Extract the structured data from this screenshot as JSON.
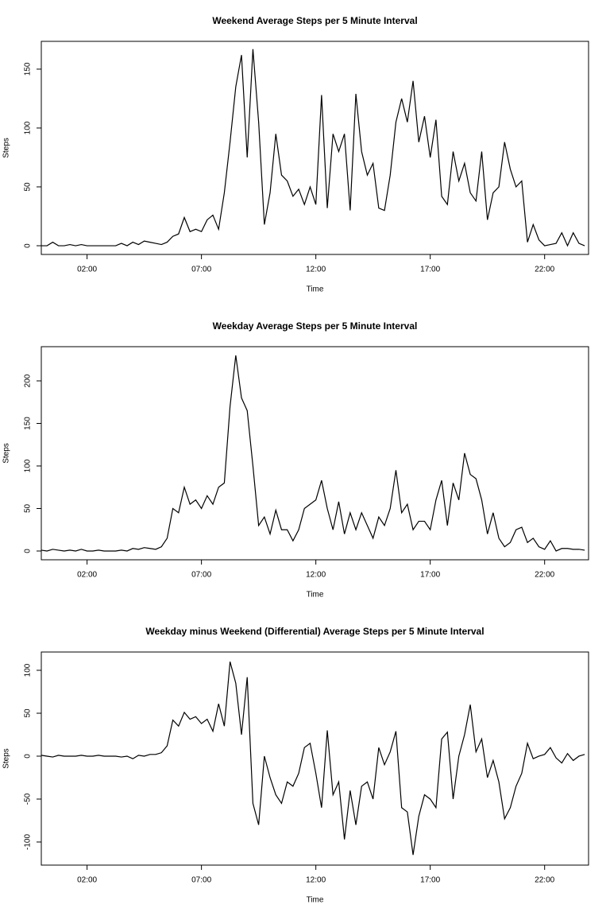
{
  "chart_data": [
    {
      "type": "line",
      "title": "Weekend Average Steps per 5 Minute Interval",
      "xlabel": "Time",
      "ylabel": "Steps",
      "color": "#000000",
      "xlim": [
        0,
        23.92
      ],
      "ylim": [
        -7.4,
        173.6
      ],
      "xticks": [
        {
          "value": 2,
          "label": "02:00"
        },
        {
          "value": 7,
          "label": "07:00"
        },
        {
          "value": 12,
          "label": "12:00"
        },
        {
          "value": 17,
          "label": "17:00"
        },
        {
          "value": 22,
          "label": "22:00"
        }
      ],
      "yticks": [
        0,
        50,
        100,
        150
      ],
      "x": [
        0,
        0.25,
        0.5,
        0.75,
        1,
        1.25,
        1.5,
        1.75,
        2,
        2.25,
        2.5,
        2.75,
        3,
        3.25,
        3.5,
        3.75,
        4,
        4.25,
        4.5,
        4.75,
        5,
        5.25,
        5.5,
        5.75,
        6,
        6.25,
        6.5,
        6.75,
        7,
        7.25,
        7.5,
        7.75,
        8,
        8.25,
        8.5,
        8.75,
        9,
        9.25,
        9.5,
        9.75,
        10,
        10.25,
        10.5,
        10.75,
        11,
        11.25,
        11.5,
        11.75,
        12,
        12.25,
        12.5,
        12.75,
        13,
        13.25,
        13.5,
        13.75,
        14,
        14.25,
        14.5,
        14.75,
        15,
        15.25,
        15.5,
        15.75,
        16,
        16.25,
        16.5,
        16.75,
        17,
        17.25,
        17.5,
        17.75,
        18,
        18.25,
        18.5,
        18.75,
        19,
        19.25,
        19.5,
        19.75,
        20,
        20.25,
        20.5,
        20.75,
        21,
        21.25,
        21.5,
        21.75,
        22,
        22.25,
        22.5,
        22.75,
        23,
        23.25,
        23.5,
        23.75
      ],
      "values": [
        0,
        0,
        3,
        0,
        0,
        1,
        0,
        1,
        0,
        0,
        0,
        0,
        0,
        0,
        2,
        0,
        3,
        1,
        4,
        3,
        2,
        1,
        3,
        8,
        10,
        24,
        12,
        14,
        12,
        22,
        26,
        14,
        45,
        88,
        135,
        162,
        75,
        167,
        105,
        18,
        45,
        95,
        60,
        55,
        42,
        48,
        35,
        50,
        35,
        128,
        32,
        95,
        80,
        95,
        30,
        129,
        80,
        60,
        70,
        32,
        30,
        60,
        105,
        125,
        105,
        140,
        88,
        110,
        75,
        107,
        42,
        35,
        80,
        55,
        70,
        45,
        38,
        80,
        22,
        45,
        50,
        88,
        65,
        50,
        55,
        3,
        18,
        5,
        0,
        1,
        2,
        11,
        0,
        11,
        2,
        0
      ]
    },
    {
      "type": "line",
      "title": "Weekday Average Steps per 5 Minute Interval",
      "xlabel": "Time",
      "ylabel": "Steps",
      "color": "#000000",
      "xlim": [
        0,
        23.92
      ],
      "ylim": [
        -10.3,
        240.2
      ],
      "xticks": [
        {
          "value": 2,
          "label": "02:00"
        },
        {
          "value": 7,
          "label": "07:00"
        },
        {
          "value": 12,
          "label": "12:00"
        },
        {
          "value": 17,
          "label": "17:00"
        },
        {
          "value": 22,
          "label": "22:00"
        }
      ],
      "yticks": [
        0,
        50,
        100,
        150,
        200
      ],
      "x": [
        0,
        0.25,
        0.5,
        0.75,
        1,
        1.25,
        1.5,
        1.75,
        2,
        2.25,
        2.5,
        2.75,
        3,
        3.25,
        3.5,
        3.75,
        4,
        4.25,
        4.5,
        4.75,
        5,
        5.25,
        5.5,
        5.75,
        6,
        6.25,
        6.5,
        6.75,
        7,
        7.25,
        7.5,
        7.75,
        8,
        8.25,
        8.5,
        8.75,
        9,
        9.25,
        9.5,
        9.75,
        10,
        10.25,
        10.5,
        10.75,
        11,
        11.25,
        11.5,
        11.75,
        12,
        12.25,
        12.5,
        12.75,
        13,
        13.25,
        13.5,
        13.75,
        14,
        14.25,
        14.5,
        14.75,
        15,
        15.25,
        15.5,
        15.75,
        16,
        16.25,
        16.5,
        16.75,
        17,
        17.25,
        17.5,
        17.75,
        18,
        18.25,
        18.5,
        18.75,
        19,
        19.25,
        19.5,
        19.75,
        20,
        20.25,
        20.5,
        20.75,
        21,
        21.25,
        21.5,
        21.75,
        22,
        22.25,
        22.5,
        22.75,
        23,
        23.25,
        23.5,
        23.75
      ],
      "values": [
        1,
        0,
        2,
        1,
        0,
        1,
        0,
        2,
        0,
        0,
        1,
        0,
        0,
        0,
        1,
        0,
        3,
        2,
        4,
        3,
        2,
        5,
        15,
        50,
        45,
        75,
        55,
        60,
        50,
        65,
        55,
        75,
        80,
        170,
        230,
        180,
        165,
        100,
        30,
        40,
        20,
        48,
        25,
        25,
        12,
        25,
        50,
        55,
        60,
        83,
        50,
        25,
        58,
        20,
        45,
        25,
        45,
        30,
        15,
        40,
        30,
        50,
        95,
        45,
        55,
        25,
        35,
        35,
        25,
        60,
        83,
        30,
        80,
        60,
        115,
        90,
        85,
        60,
        20,
        45,
        15,
        5,
        10,
        25,
        28,
        10,
        15,
        5,
        2,
        12,
        0,
        3,
        3,
        2,
        2,
        1
      ]
    },
    {
      "type": "line",
      "title": "Weekday minus Weekend (Differential) Average Steps per 5 Minute Interval",
      "xlabel": "Time",
      "ylabel": "Steps",
      "color": "#000000",
      "xlim": [
        0,
        23.92
      ],
      "ylim": [
        -126.9,
        121.3
      ],
      "xticks": [
        {
          "value": 2,
          "label": "02:00"
        },
        {
          "value": 7,
          "label": "07:00"
        },
        {
          "value": 12,
          "label": "12:00"
        },
        {
          "value": 17,
          "label": "17:00"
        },
        {
          "value": 22,
          "label": "22:00"
        }
      ],
      "yticks": [
        -100,
        -50,
        0,
        50,
        100
      ],
      "x": [
        0,
        0.25,
        0.5,
        0.75,
        1,
        1.25,
        1.5,
        1.75,
        2,
        2.25,
        2.5,
        2.75,
        3,
        3.25,
        3.5,
        3.75,
        4,
        4.25,
        4.5,
        4.75,
        5,
        5.25,
        5.5,
        5.75,
        6,
        6.25,
        6.5,
        6.75,
        7,
        7.25,
        7.5,
        7.75,
        8,
        8.25,
        8.5,
        8.75,
        9,
        9.25,
        9.5,
        9.75,
        10,
        10.25,
        10.5,
        10.75,
        11,
        11.25,
        11.5,
        11.75,
        12,
        12.25,
        12.5,
        12.75,
        13,
        13.25,
        13.5,
        13.75,
        14,
        14.25,
        14.5,
        14.75,
        15,
        15.25,
        15.5,
        15.75,
        16,
        16.25,
        16.5,
        16.75,
        17,
        17.25,
        17.5,
        17.75,
        18,
        18.25,
        18.5,
        18.75,
        19,
        19.25,
        19.5,
        19.75,
        20,
        20.25,
        20.5,
        20.75,
        21,
        21.25,
        21.5,
        21.75,
        22,
        22.25,
        22.5,
        22.75,
        23,
        23.25,
        23.5,
        23.75
      ],
      "values": [
        1,
        0,
        -1,
        1,
        0,
        0,
        0,
        1,
        0,
        0,
        1,
        0,
        0,
        0,
        -1,
        0,
        -3,
        1,
        0,
        2,
        2,
        4,
        12,
        42,
        35,
        51,
        43,
        46,
        38,
        43,
        29,
        61,
        35,
        110,
        85,
        25,
        92,
        -55,
        -80,
        0,
        -25,
        -45,
        -55,
        -30,
        -35,
        -20,
        10,
        15,
        -20,
        -60,
        30,
        -45,
        -30,
        -97,
        -40,
        -80,
        -35,
        -30,
        -50,
        10,
        -10,
        5,
        29,
        -60,
        -65,
        -115,
        -70,
        -45,
        -50,
        -60,
        20,
        28,
        -50,
        0,
        25,
        60,
        5,
        20,
        -25,
        -5,
        -30,
        -73,
        -60,
        -35,
        -20,
        15,
        -3,
        0,
        2,
        10,
        -2,
        -8,
        3,
        -5,
        0,
        2
      ]
    }
  ]
}
